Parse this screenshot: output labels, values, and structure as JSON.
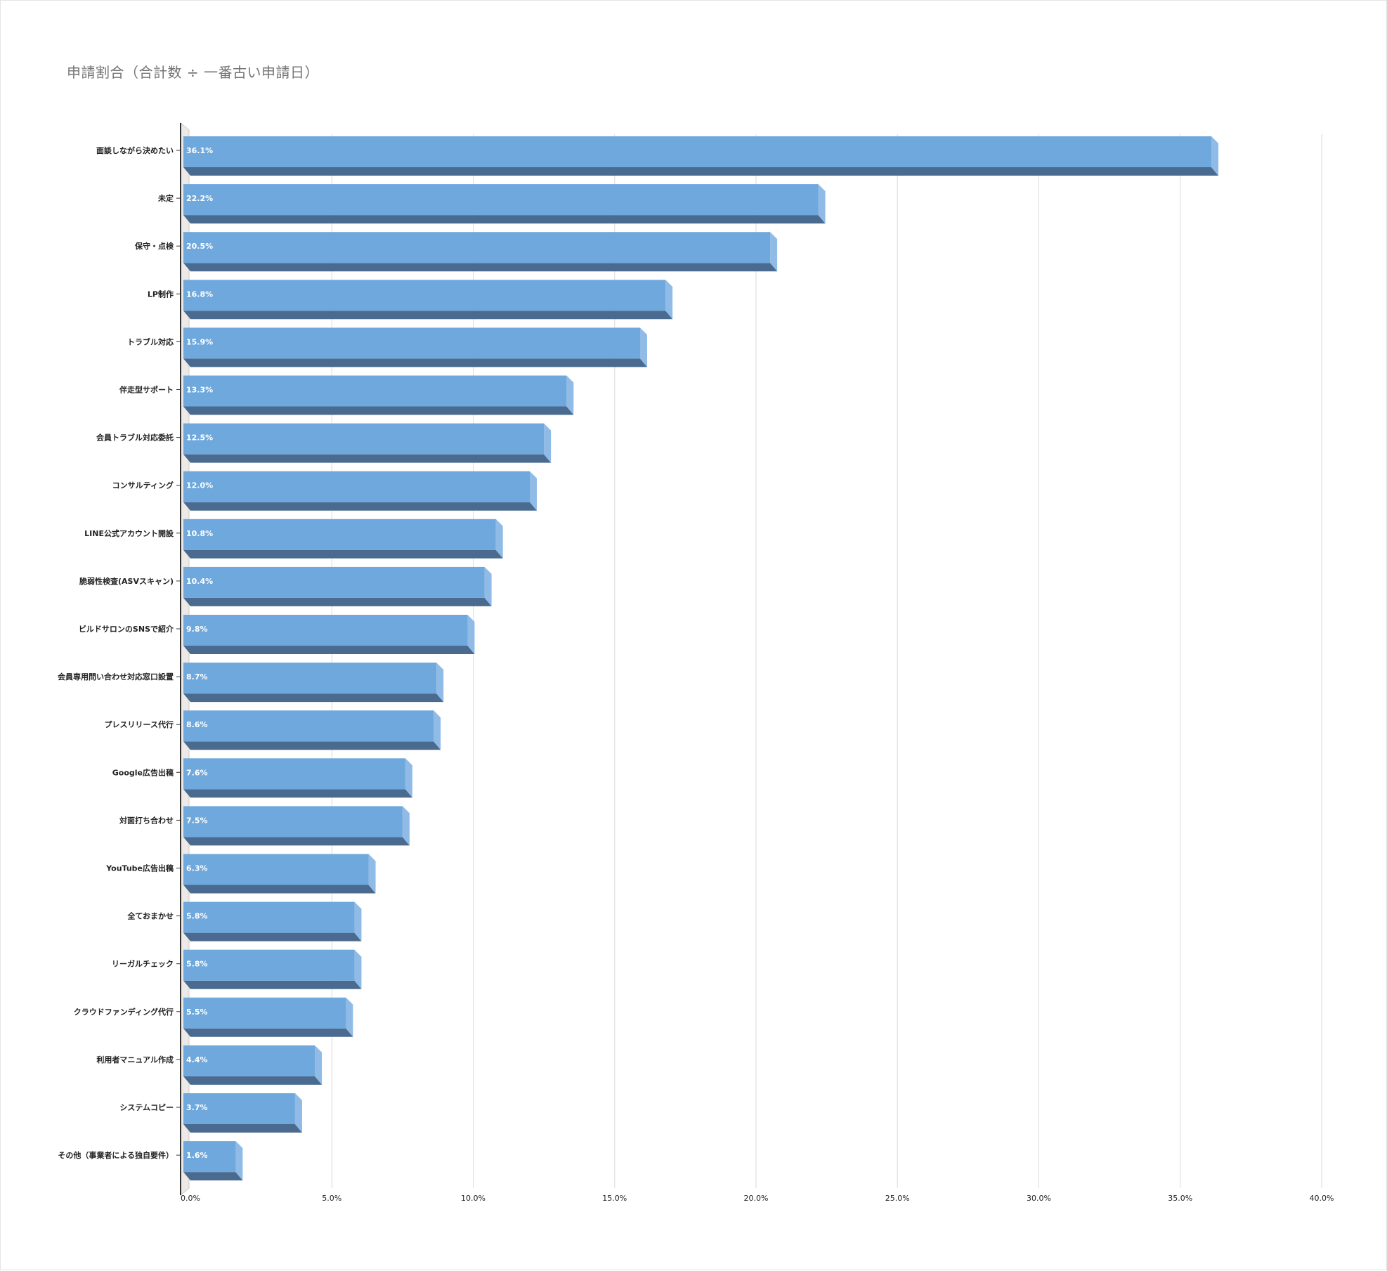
{
  "chart_data": {
    "type": "bar",
    "orientation": "horizontal",
    "style": "3d",
    "title": "申請割合（合計数 ÷ 一番古い申請日）",
    "categories": [
      "面談しながら決めたい",
      "未定",
      "保守・点検",
      "LP制作",
      "トラブル対応",
      "伴走型サポート",
      "会員トラブル対応委託",
      "コンサルティング",
      "LINE公式アカウント開設",
      "脆弱性検査(ASVスキャン)",
      "ビルドサロンのSNSで紹介",
      "会員専用問い合わせ対応窓口設置",
      "プレスリリース代行",
      "Google広告出稿",
      "対面打ち合わせ",
      "YouTube広告出稿",
      "全ておまかせ",
      "リーガルチェック",
      "クラウドファンディング代行",
      "利用者マニュアル作成",
      "システムコピー",
      "その他（事業者による独自要件）"
    ],
    "values": [
      36.1,
      22.2,
      20.5,
      16.8,
      15.9,
      13.3,
      12.5,
      12.0,
      10.8,
      10.4,
      9.8,
      8.7,
      8.6,
      7.6,
      7.5,
      6.3,
      5.8,
      5.8,
      5.5,
      4.4,
      3.7,
      1.6
    ],
    "data_labels": [
      "36.1%",
      "22.2%",
      "20.5%",
      "16.8%",
      "15.9%",
      "13.3%",
      "12.5%",
      "12.0%",
      "10.8%",
      "10.4%",
      "9.8%",
      "8.7%",
      "8.6%",
      "7.6%",
      "7.5%",
      "6.3%",
      "5.8%",
      "5.8%",
      "5.5%",
      "4.4%",
      "3.7%",
      "1.6%"
    ],
    "xlim": [
      0,
      40
    ],
    "x_ticks": [
      "0.0%",
      "5.0%",
      "10.0%",
      "15.0%",
      "20.0%",
      "25.0%",
      "30.0%",
      "35.0%",
      "40.0%"
    ],
    "grid": "vertical",
    "legend": "none",
    "colors": {
      "bar_face": "#6fa8dc",
      "bar_bottom": "#4a6b8f",
      "bar_side": "#8fbbe6",
      "grid": "#dadada",
      "axis": "#333333",
      "title": "#757575"
    }
  }
}
